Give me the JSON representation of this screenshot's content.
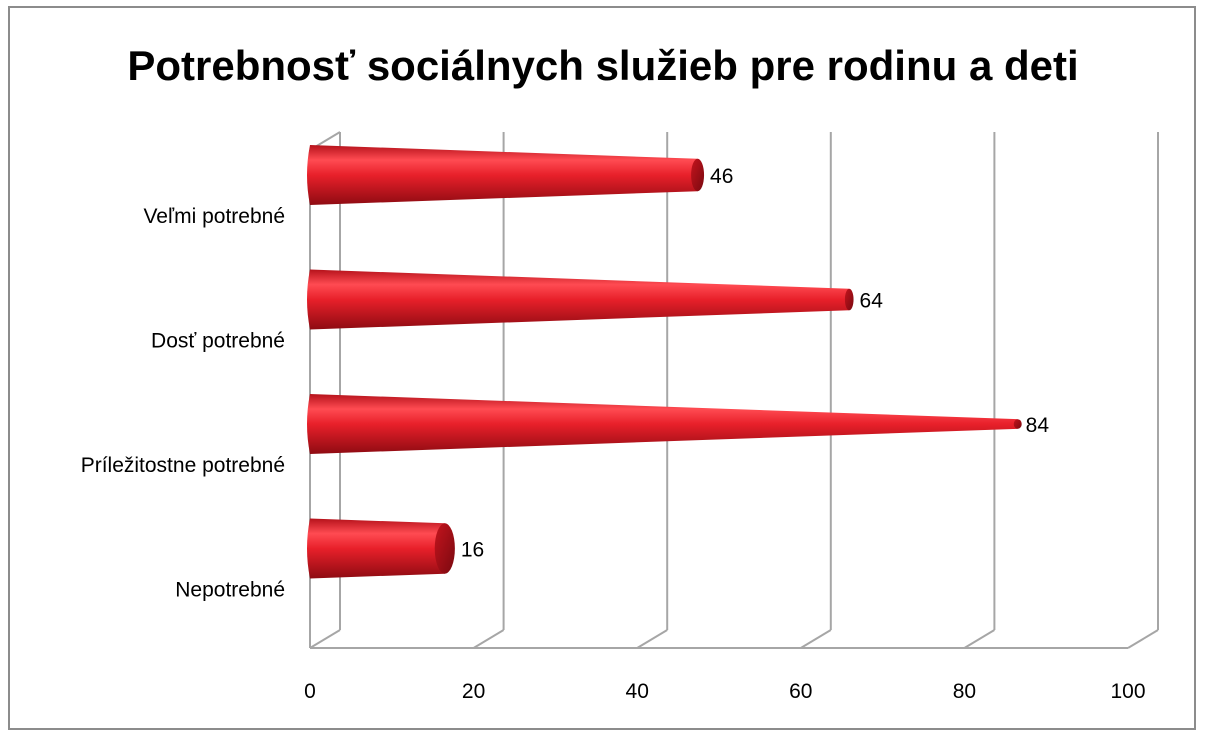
{
  "chart_data": {
    "type": "bar",
    "orientation": "horizontal",
    "shape": "cone-3d",
    "title": "Potrebnosť sociálnych služieb pre rodinu a deti",
    "categories": [
      "Veľmi potrebné",
      "Dosť potrebné",
      "Príležitostne potrebné",
      "Nepotrebné"
    ],
    "values": [
      46,
      64,
      84,
      16
    ],
    "xlabel": "",
    "ylabel": "",
    "xlim": [
      0,
      100
    ],
    "x_ticks": [
      "0",
      "20",
      "40",
      "60",
      "80",
      "100"
    ],
    "grid": true,
    "legend": "none",
    "colors": {
      "bar": "#e8202a",
      "bar_dark": "#9e0d14",
      "bar_light": "#ff5a5f",
      "grid": "#a6a6a6",
      "frame": "#8c8c8c"
    }
  }
}
